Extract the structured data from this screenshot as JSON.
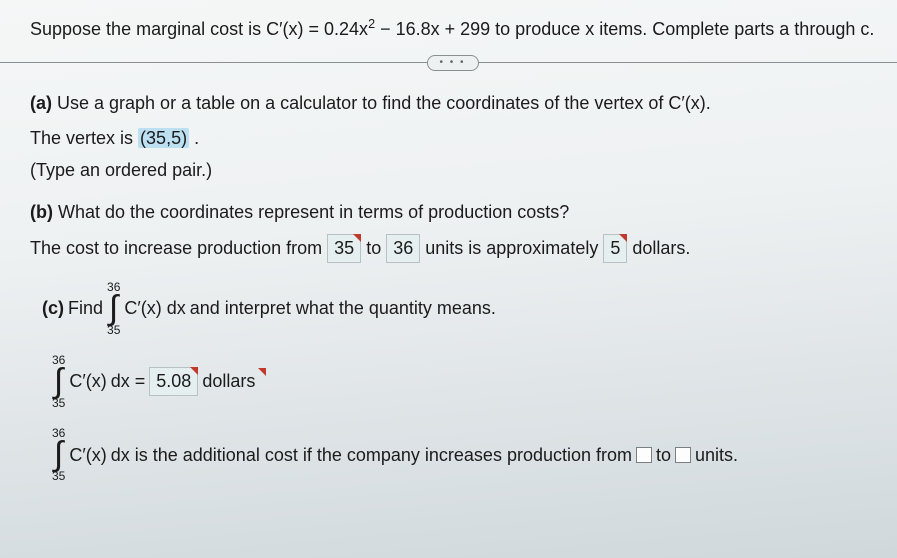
{
  "problem": {
    "intro_pre": "Suppose the marginal cost is ",
    "formula_lhs": "C′(x) = 0.24x",
    "formula_exp": "2",
    "formula_rest": " − 16.8x + 299",
    "intro_post": " to produce x items. Complete parts a through c."
  },
  "pill": "• • •",
  "partA": {
    "label": "(a)",
    "prompt": " Use a graph or a table on a calculator to find the coordinates of the vertex of C′(x).",
    "answer_pre": "The vertex is ",
    "answer_val": "(35,5)",
    "answer_post": " .",
    "hint": "(Type an ordered pair.)"
  },
  "partB": {
    "label": "(b)",
    "prompt": " What do the coordinates represent in terms of production costs?",
    "ans_1": "The cost to increase production from ",
    "from": "35",
    "ans_2": " to ",
    "to": "36",
    "ans_3": " units is approximately ",
    "val": "5",
    "ans_4": " dollars."
  },
  "partC": {
    "label": "(c)",
    "find": " Find ",
    "upper": "36",
    "lower": "35",
    "integrand": "C′(x) dx",
    "tail": " and interpret what the quantity means.",
    "eq_lhs_tail": " dx = ",
    "value": "5.08",
    "unit": "dollars",
    "interp_1": " dx is the additional cost if the company increases production from ",
    "interp_to": " to ",
    "interp_end": " units."
  }
}
